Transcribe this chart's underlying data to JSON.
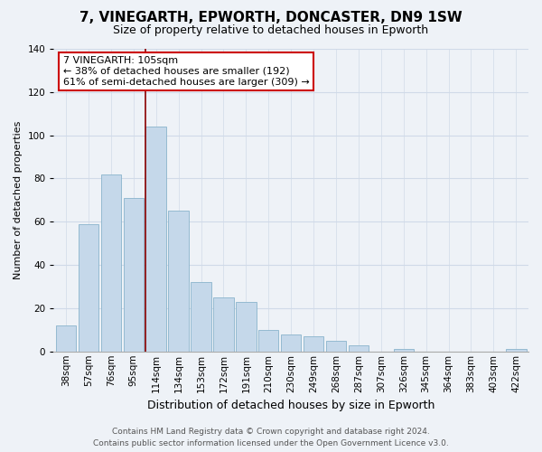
{
  "title": "7, VINEGARTH, EPWORTH, DONCASTER, DN9 1SW",
  "subtitle": "Size of property relative to detached houses in Epworth",
  "xlabel": "Distribution of detached houses by size in Epworth",
  "ylabel": "Number of detached properties",
  "categories": [
    "38sqm",
    "57sqm",
    "76sqm",
    "95sqm",
    "114sqm",
    "134sqm",
    "153sqm",
    "172sqm",
    "191sqm",
    "210sqm",
    "230sqm",
    "249sqm",
    "268sqm",
    "287sqm",
    "307sqm",
    "326sqm",
    "345sqm",
    "364sqm",
    "383sqm",
    "403sqm",
    "422sqm"
  ],
  "values": [
    12,
    59,
    82,
    71,
    104,
    65,
    32,
    25,
    23,
    10,
    8,
    7,
    5,
    3,
    0,
    1,
    0,
    0,
    0,
    0,
    1
  ],
  "bar_color": "#c5d8ea",
  "bar_edge_color": "#8ab4cc",
  "highlight_color": "#8b0000",
  "annotation_title": "7 VINEGARTH: 105sqm",
  "annotation_line1": "← 38% of detached houses are smaller (192)",
  "annotation_line2": "61% of semi-detached houses are larger (309) →",
  "annotation_box_color": "#ffffff",
  "annotation_box_edge": "#cc0000",
  "ylim": [
    0,
    140
  ],
  "yticks": [
    0,
    20,
    40,
    60,
    80,
    100,
    120,
    140
  ],
  "footer1": "Contains HM Land Registry data © Crown copyright and database right 2024.",
  "footer2": "Contains public sector information licensed under the Open Government Licence v3.0.",
  "background_color": "#eef2f7",
  "grid_color": "#d0dae8",
  "title_fontsize": 11,
  "subtitle_fontsize": 9,
  "ylabel_fontsize": 8,
  "xlabel_fontsize": 9,
  "tick_fontsize": 7.5,
  "footer_fontsize": 6.5
}
